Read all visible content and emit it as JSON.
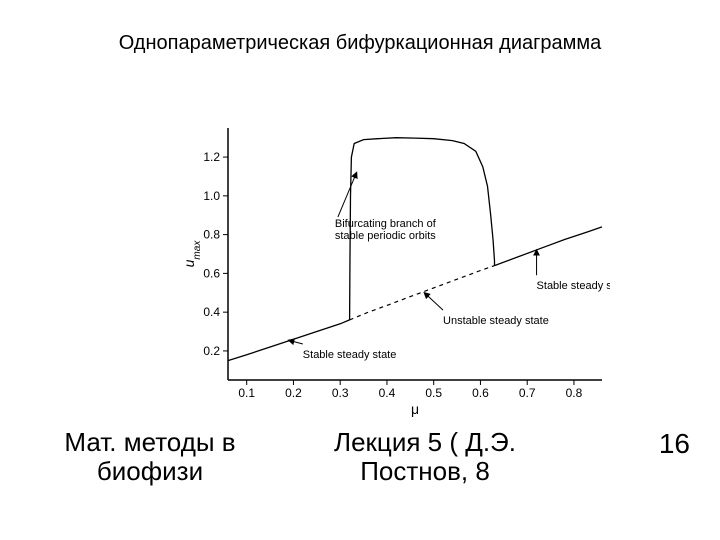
{
  "title": "Однопараметрическая бифуркационная диаграмма",
  "footer": {
    "left": "Мат. методы в биофизи",
    "center": "Лекция 5 ( Д.Э. Постнов, 8",
    "page": "16"
  },
  "chart": {
    "type": "line",
    "xlabel": "μ",
    "ylabel": "u_max",
    "xlim": [
      0.06,
      0.86
    ],
    "ylim": [
      0.05,
      1.35
    ],
    "xticks": [
      0.1,
      0.2,
      0.3,
      0.4,
      0.5,
      0.6,
      0.7,
      0.8
    ],
    "yticks": [
      0.2,
      0.4,
      0.6,
      0.8,
      1.0,
      1.2
    ],
    "xtick_labels": [
      "0.1",
      "0.2",
      "0.3",
      "0.4",
      "0.5",
      "0.6",
      "0.7",
      "0.8"
    ],
    "ytick_labels": [
      "0.2",
      "0.4",
      "0.6",
      "0.8",
      "1.0",
      "1.2"
    ],
    "tick_fontsize": 12,
    "label_fontsize": 14,
    "annot_fontsize": 11,
    "colors": {
      "line": "#000000",
      "background": "#ffffff",
      "text": "#000000"
    },
    "line_width": 1.3,
    "dash_pattern": "4 4",
    "series": {
      "stable_steady_left": {
        "style": "solid",
        "points": [
          [
            0.06,
            0.15
          ],
          [
            0.1,
            0.18
          ],
          [
            0.15,
            0.22
          ],
          [
            0.2,
            0.26
          ],
          [
            0.25,
            0.3
          ],
          [
            0.3,
            0.34
          ],
          [
            0.32,
            0.36
          ]
        ]
      },
      "unstable_steady": {
        "style": "dashed",
        "points": [
          [
            0.32,
            0.36
          ],
          [
            0.36,
            0.4
          ],
          [
            0.4,
            0.435
          ],
          [
            0.45,
            0.48
          ],
          [
            0.5,
            0.525
          ],
          [
            0.55,
            0.57
          ],
          [
            0.6,
            0.615
          ],
          [
            0.63,
            0.64
          ]
        ]
      },
      "stable_steady_right": {
        "style": "solid",
        "points": [
          [
            0.63,
            0.64
          ],
          [
            0.68,
            0.685
          ],
          [
            0.73,
            0.73
          ],
          [
            0.78,
            0.775
          ],
          [
            0.83,
            0.815
          ],
          [
            0.86,
            0.84
          ]
        ]
      },
      "periodic_orbit": {
        "style": "solid",
        "points": [
          [
            0.32,
            0.36
          ],
          [
            0.321,
            0.7
          ],
          [
            0.322,
            1.0
          ],
          [
            0.324,
            1.2
          ],
          [
            0.33,
            1.27
          ],
          [
            0.35,
            1.29
          ],
          [
            0.38,
            1.295
          ],
          [
            0.42,
            1.3
          ],
          [
            0.46,
            1.298
          ],
          [
            0.5,
            1.295
          ],
          [
            0.54,
            1.285
          ],
          [
            0.565,
            1.27
          ],
          [
            0.59,
            1.23
          ],
          [
            0.605,
            1.15
          ],
          [
            0.615,
            1.05
          ],
          [
            0.622,
            0.9
          ],
          [
            0.627,
            0.77
          ],
          [
            0.63,
            0.665
          ],
          [
            0.63,
            0.64
          ]
        ]
      }
    },
    "annotations": {
      "stable_left": {
        "text": "Stable steady state",
        "at": [
          0.22,
          0.215
        ],
        "arrow_to": [
          0.19,
          0.255
        ]
      },
      "unstable": {
        "text": "Unstable steady state",
        "at": [
          0.52,
          0.39
        ],
        "arrow_to": [
          0.48,
          0.5
        ]
      },
      "stable_right": {
        "text": "Stable steady state",
        "at": [
          0.72,
          0.57
        ],
        "arrow_to": [
          0.72,
          0.72
        ]
      },
      "bifurcating": {
        "text1": "Bifurcating branch of",
        "text2": "stable periodic orbits",
        "at": [
          0.295,
          0.87
        ],
        "arrow_to": [
          0.335,
          1.12
        ]
      }
    }
  }
}
